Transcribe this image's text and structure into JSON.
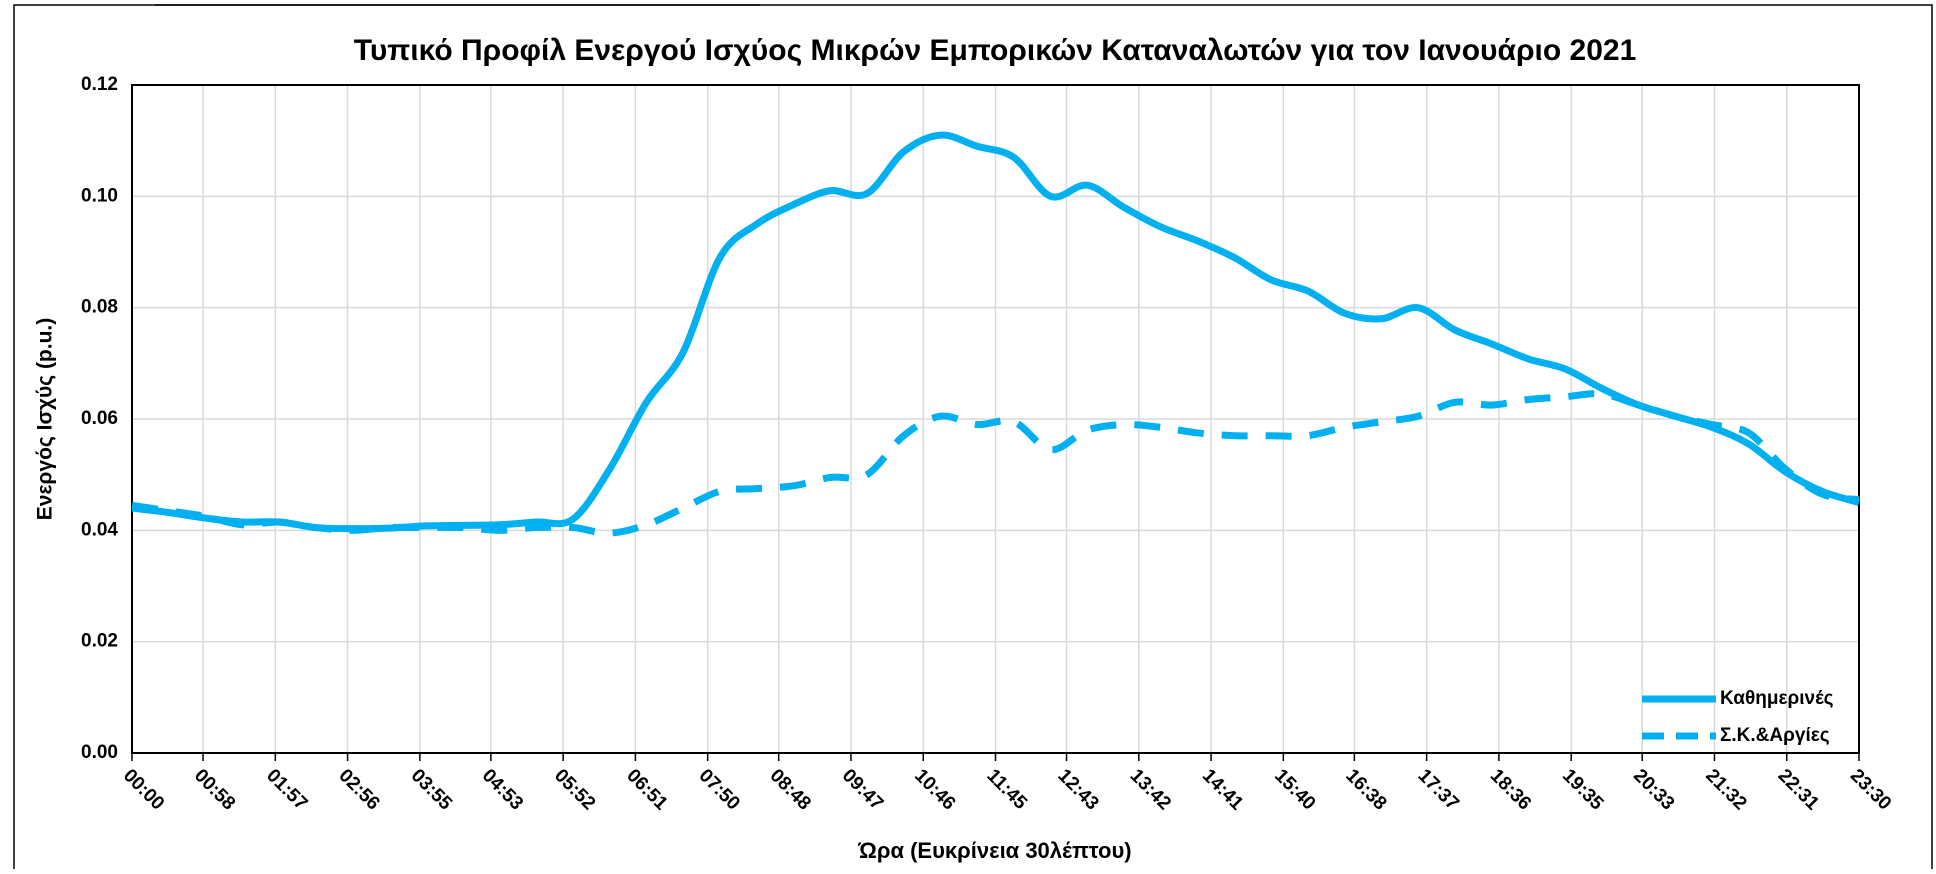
{
  "chart_data": {
    "type": "line",
    "title": "Τυπικό Προφίλ Ενεργού Ισχύος Μικρών Εμπορικών Καταναλωτών για τον Ιανουάριο 2021",
    "x_label": "Ώρα (Ευκρίνεια 30λέπτου)",
    "y_label": "Ενεργός Ισχύς (p.u.)",
    "x": [
      0,
      30,
      60,
      90,
      120,
      150,
      180,
      210,
      240,
      270,
      300,
      330,
      360,
      390,
      420,
      450,
      480,
      510,
      540,
      570,
      600,
      630,
      660,
      690,
      720,
      750,
      780,
      810,
      840,
      870,
      900,
      930,
      960,
      990,
      1020,
      1050,
      1080,
      1110,
      1140,
      1170,
      1200,
      1230,
      1260,
      1290,
      1320,
      1350,
      1380,
      1410
    ],
    "xlim": [
      0,
      1410
    ],
    "xticks": [
      {
        "value": 0,
        "label": "00:00"
      },
      {
        "value": 58,
        "label": "00:58"
      },
      {
        "value": 117,
        "label": "01:57"
      },
      {
        "value": 176,
        "label": "02:56"
      },
      {
        "value": 235,
        "label": "03:55"
      },
      {
        "value": 293,
        "label": "04:53"
      },
      {
        "value": 352,
        "label": "05:52"
      },
      {
        "value": 411,
        "label": "06:51"
      },
      {
        "value": 470,
        "label": "07:50"
      },
      {
        "value": 528,
        "label": "08:48"
      },
      {
        "value": 587,
        "label": "09:47"
      },
      {
        "value": 646,
        "label": "10:46"
      },
      {
        "value": 705,
        "label": "11:45"
      },
      {
        "value": 763,
        "label": "12:43"
      },
      {
        "value": 822,
        "label": "13:42"
      },
      {
        "value": 881,
        "label": "14:41"
      },
      {
        "value": 940,
        "label": "15:40"
      },
      {
        "value": 998,
        "label": "16:38"
      },
      {
        "value": 1057,
        "label": "17:37"
      },
      {
        "value": 1116,
        "label": "18:36"
      },
      {
        "value": 1175,
        "label": "19:35"
      },
      {
        "value": 1233,
        "label": "20:33"
      },
      {
        "value": 1292,
        "label": "21:32"
      },
      {
        "value": 1351,
        "label": "22:31"
      },
      {
        "value": 1410,
        "label": "23:30"
      }
    ],
    "ylim": [
      0,
      0.12
    ],
    "yticks": [
      {
        "value": 0,
        "label": "0.00"
      },
      {
        "value": 0.02,
        "label": "0.02"
      },
      {
        "value": 0.04,
        "label": "0.04"
      },
      {
        "value": 0.06,
        "label": "0.06"
      },
      {
        "value": 0.08,
        "label": "0.08"
      },
      {
        "value": 0.1,
        "label": "0.10"
      },
      {
        "value": 0.12,
        "label": "0.12"
      }
    ],
    "grid": true,
    "legend": "lower right",
    "series": [
      {
        "name": "Καθημερινές",
        "color": "#00b0f0",
        "dash": false,
        "values": [
          0.044,
          0.0432,
          0.0422,
          0.0415,
          0.0415,
          0.0405,
          0.0403,
          0.0404,
          0.0408,
          0.0409,
          0.041,
          0.0415,
          0.042,
          0.051,
          0.063,
          0.072,
          0.089,
          0.095,
          0.0985,
          0.101,
          0.1005,
          0.108,
          0.111,
          0.109,
          0.107,
          0.1,
          0.102,
          0.098,
          0.0945,
          0.092,
          0.089,
          0.085,
          0.083,
          0.079,
          0.078,
          0.08,
          0.076,
          0.0735,
          0.0708,
          0.069,
          0.0655,
          0.0625,
          0.0605,
          0.0585,
          0.0555,
          0.0505,
          0.047,
          0.045
        ]
      },
      {
        "name": "Σ.Κ.&Αργίες",
        "color": "#00b0f0",
        "dash": true,
        "values": [
          0.0445,
          0.0435,
          0.0425,
          0.041,
          0.0415,
          0.0405,
          0.04,
          0.0405,
          0.0405,
          0.0405,
          0.04,
          0.0405,
          0.0405,
          0.0395,
          0.041,
          0.044,
          0.047,
          0.0475,
          0.048,
          0.0495,
          0.05,
          0.057,
          0.0605,
          0.059,
          0.0595,
          0.0545,
          0.058,
          0.059,
          0.0585,
          0.0575,
          0.057,
          0.057,
          0.057,
          0.0585,
          0.0595,
          0.0605,
          0.063,
          0.0625,
          0.0635,
          0.064,
          0.0645,
          0.0625,
          0.0605,
          0.059,
          0.0575,
          0.051,
          0.0465,
          0.0455
        ]
      }
    ]
  }
}
